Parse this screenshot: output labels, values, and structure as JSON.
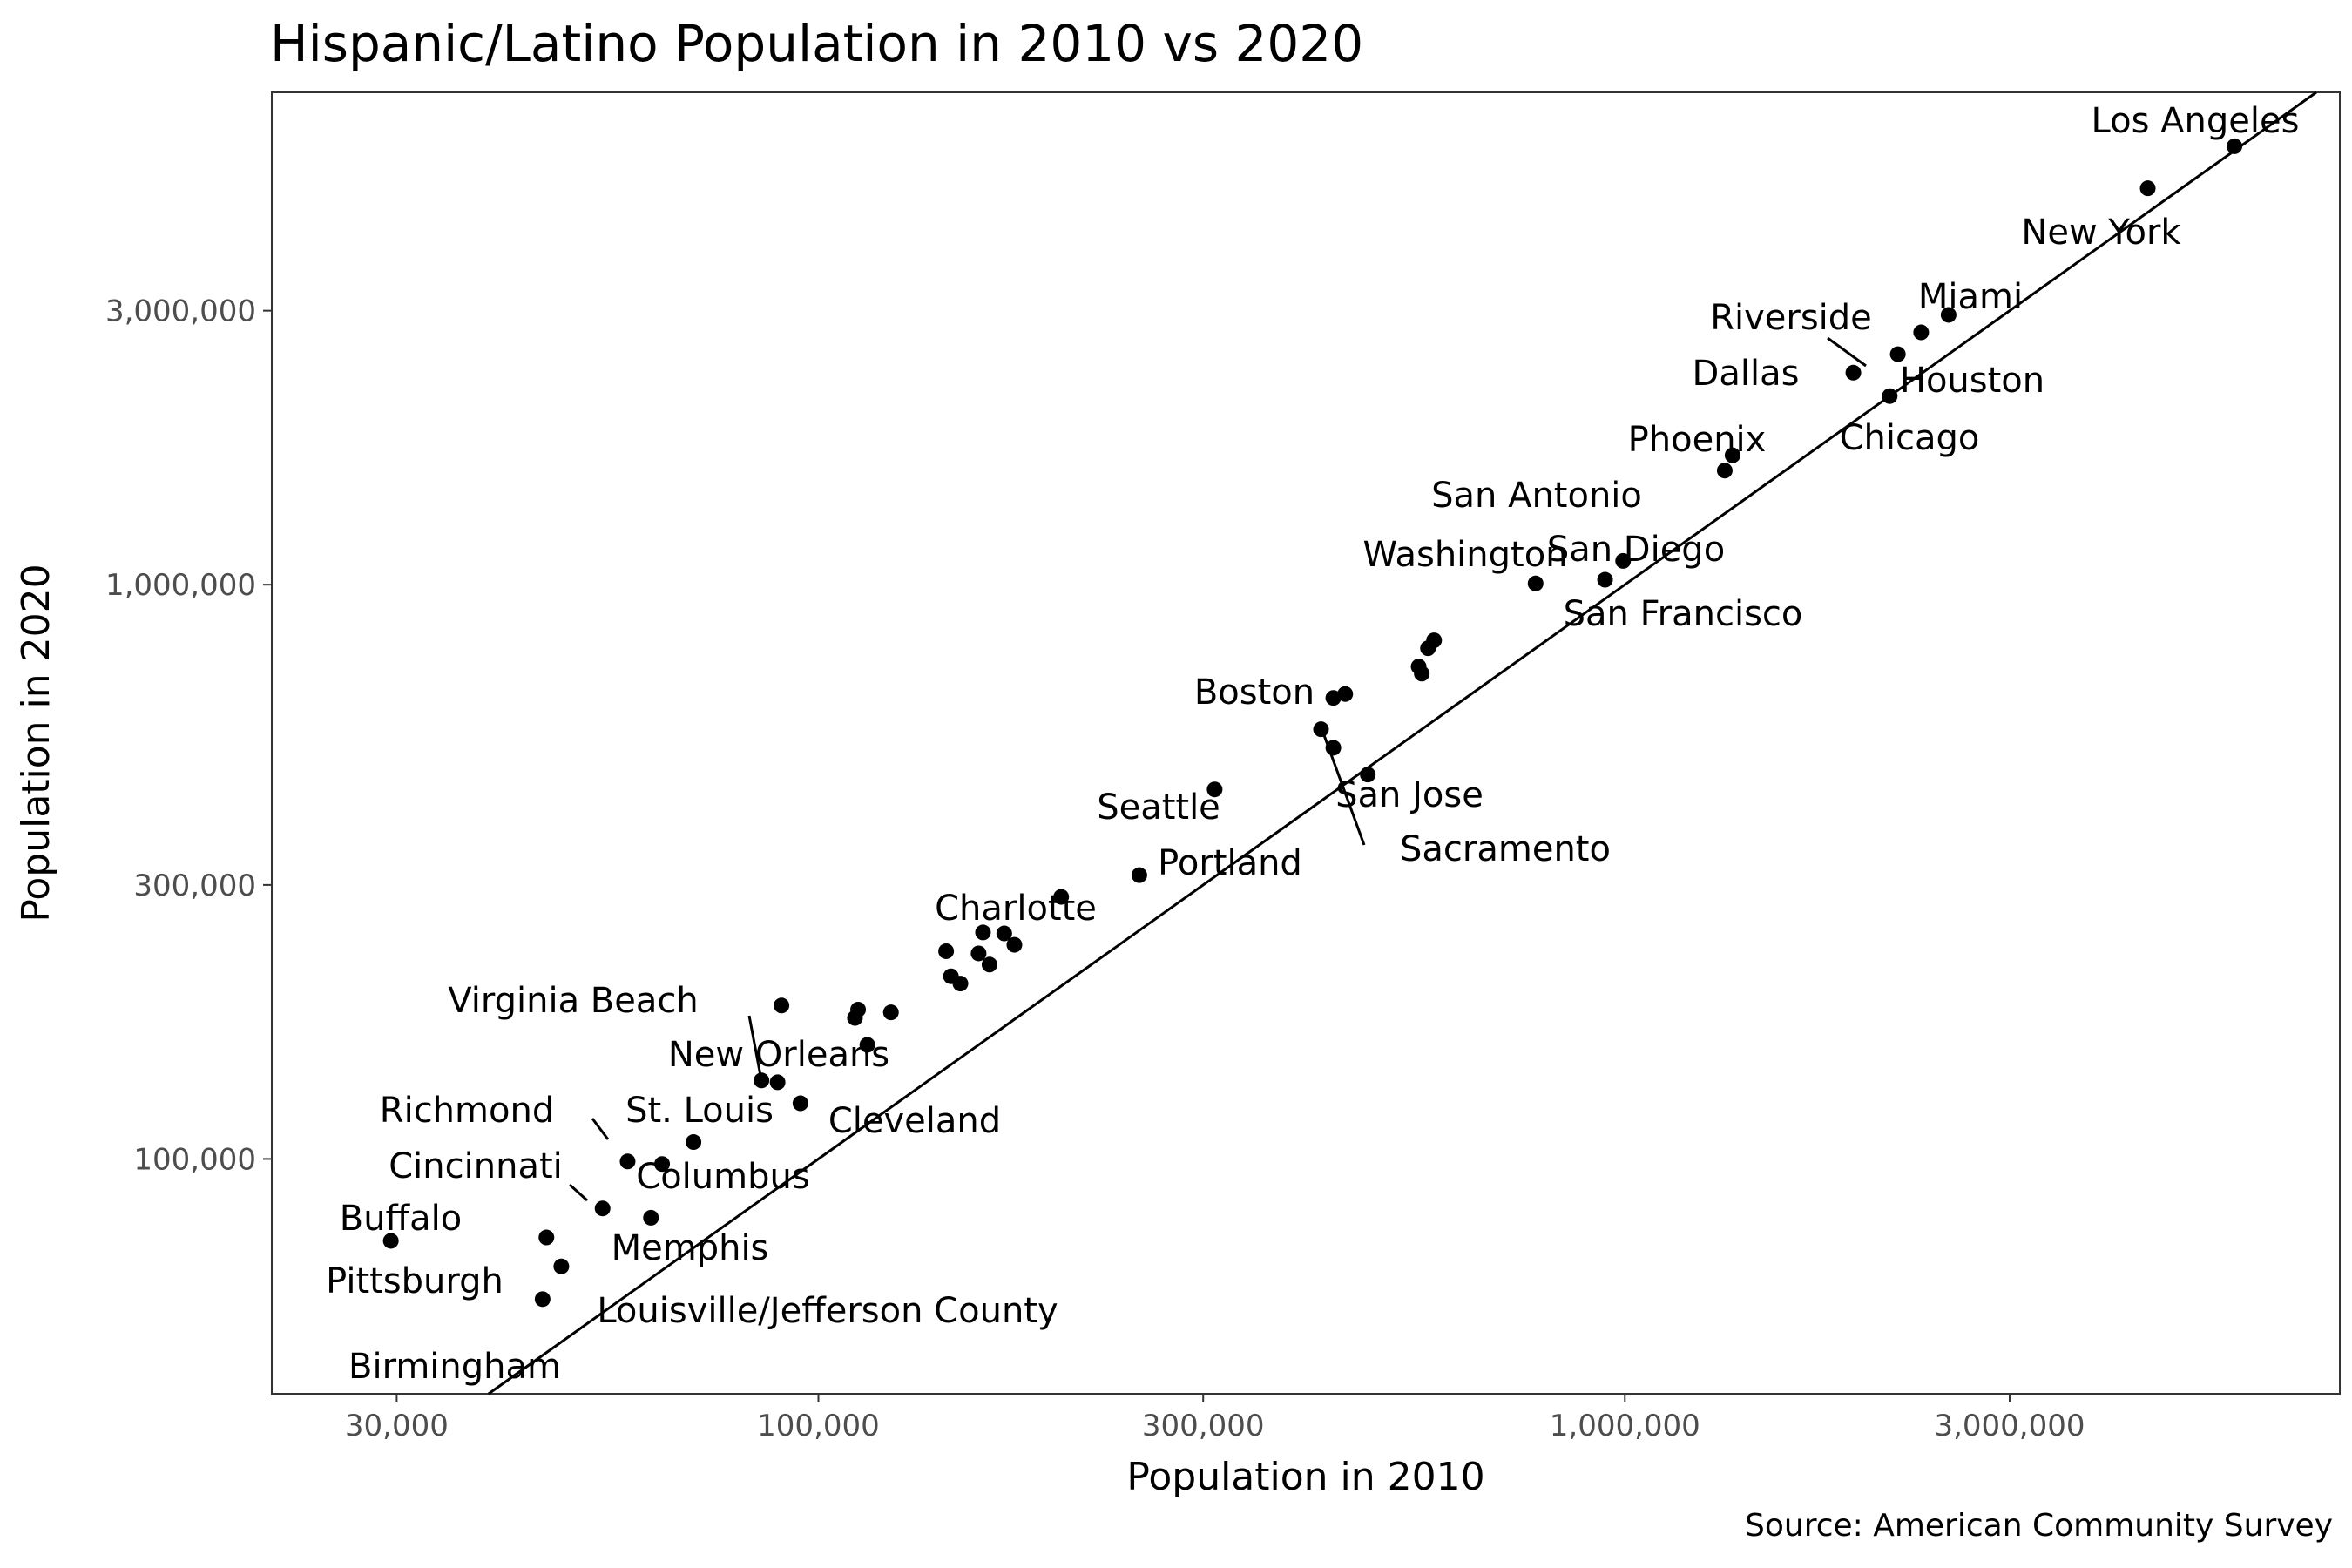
{
  "chart_data": {
    "type": "scatter",
    "title": "Hispanic/Latino Population in 2010 vs 2020",
    "xlabel": "Population in 2010",
    "ylabel": "Population in 2020",
    "caption": "Source: American Community Survey",
    "x_scale": "log10",
    "y_scale": "log10",
    "xlim": [
      21000,
      7700000
    ],
    "ylim": [
      39000,
      7200000
    ],
    "x_ticks": [
      {
        "value": 30000,
        "label": "30,000"
      },
      {
        "value": 100000,
        "label": "100,000"
      },
      {
        "value": 300000,
        "label": "300,000"
      },
      {
        "value": 1000000,
        "label": "1,000,000"
      },
      {
        "value": 3000000,
        "label": "3,000,000"
      }
    ],
    "y_ticks": [
      {
        "value": 100000,
        "label": "100,000"
      },
      {
        "value": 300000,
        "label": "300,000"
      },
      {
        "value": 1000000,
        "label": "1,000,000"
      },
      {
        "value": 3000000,
        "label": "3,000,000"
      }
    ],
    "reference_line": "y = x",
    "grid": false,
    "legend": "none",
    "points": [
      {
        "label": "Los Angeles",
        "x": 5700000,
        "y": 5800000
      },
      {
        "label": "New York",
        "x": 4450000,
        "y": 4900000
      },
      {
        "label": "Miami",
        "x": 2520000,
        "y": 2950000
      },
      {
        "label": "Houston",
        "x": 2330000,
        "y": 2750000
      },
      {
        "label": "Riverside",
        "x": 2180000,
        "y": 2520000
      },
      {
        "label": "Chicago",
        "x": 2130000,
        "y": 2130000
      },
      {
        "label": "Dallas",
        "x": 1920000,
        "y": 2340000
      },
      {
        "label": "Phoenix",
        "x": 1360000,
        "y": 1680000
      },
      {
        "label": "San Antonio",
        "x": 1330000,
        "y": 1580000
      },
      {
        "label": "San Diego",
        "x": 995000,
        "y": 1100000
      },
      {
        "label": "San Francisco",
        "x": 945000,
        "y": 1020000
      },
      {
        "label": "Washington",
        "x": 775000,
        "y": 1005000
      },
      {
        "label": "",
        "x": 580000,
        "y": 800000
      },
      {
        "label": "",
        "x": 570000,
        "y": 775000
      },
      {
        "label": "",
        "x": 555000,
        "y": 720000
      },
      {
        "label": "",
        "x": 560000,
        "y": 700000
      },
      {
        "label": "",
        "x": 435000,
        "y": 635000
      },
      {
        "label": "",
        "x": 450000,
        "y": 645000
      },
      {
        "label": "Boston",
        "x": 420000,
        "y": 560000
      },
      {
        "label": "San Jose",
        "x": 435000,
        "y": 520000
      },
      {
        "label": "Sacramento",
        "x": 480000,
        "y": 467000
      },
      {
        "label": "Seattle",
        "x": 310000,
        "y": 440000
      },
      {
        "label": "Portland",
        "x": 250000,
        "y": 312000
      },
      {
        "label": "",
        "x": 200000,
        "y": 286000
      },
      {
        "label": "Charlotte",
        "x": 170000,
        "y": 247000
      },
      {
        "label": "",
        "x": 175000,
        "y": 236000
      },
      {
        "label": "",
        "x": 160000,
        "y": 248000
      },
      {
        "label": "",
        "x": 158000,
        "y": 228000
      },
      {
        "label": "",
        "x": 163000,
        "y": 218000
      },
      {
        "label": "",
        "x": 144000,
        "y": 230000
      },
      {
        "label": "",
        "x": 146000,
        "y": 208000
      },
      {
        "label": "",
        "x": 150000,
        "y": 202000
      },
      {
        "label": "",
        "x": 123000,
        "y": 180000
      },
      {
        "label": "",
        "x": 112000,
        "y": 182000
      },
      {
        "label": "",
        "x": 111000,
        "y": 176000
      },
      {
        "label": "",
        "x": 115000,
        "y": 158000
      },
      {
        "label": "Virginia Beach",
        "x": 90000,
        "y": 185000
      },
      {
        "label": "New Orleans",
        "x": 89000,
        "y": 136000
      },
      {
        "label": "",
        "x": 85000,
        "y": 137000
      },
      {
        "label": "Cleveland",
        "x": 95000,
        "y": 125000
      },
      {
        "label": "St. Louis",
        "x": 70000,
        "y": 107000
      },
      {
        "label": "Columbus",
        "x": 64000,
        "y": 98000
      },
      {
        "label": "Richmond",
        "x": 58000,
        "y": 99000
      },
      {
        "label": "Cincinnati",
        "x": 54000,
        "y": 82000
      },
      {
        "label": "Memphis",
        "x": 62000,
        "y": 79000
      },
      {
        "label": "Buffalo",
        "x": 46000,
        "y": 73000
      },
      {
        "label": "",
        "x": 29500,
        "y": 72000
      },
      {
        "label": "Pittsburgh",
        "x": 48000,
        "y": 65000
      },
      {
        "label": "Louisville/Jefferson County",
        "x": 45500,
        "y": 57000
      }
    ],
    "annotations": [
      {
        "text": "Los Angeles"
      },
      {
        "text": "New York"
      },
      {
        "text": "Miami"
      },
      {
        "text": "Riverside"
      },
      {
        "text": "Houston"
      },
      {
        "text": "Dallas"
      },
      {
        "text": "Chicago"
      },
      {
        "text": "Phoenix"
      },
      {
        "text": "San Antonio"
      },
      {
        "text": "San Diego"
      },
      {
        "text": "Washington"
      },
      {
        "text": "San Francisco"
      },
      {
        "text": "Boston"
      },
      {
        "text": "San Jose"
      },
      {
        "text": "Sacramento"
      },
      {
        "text": "Seattle"
      },
      {
        "text": "Portland"
      },
      {
        "text": "Charlotte"
      },
      {
        "text": "Virginia Beach"
      },
      {
        "text": "New Orleans"
      },
      {
        "text": "Cleveland"
      },
      {
        "text": "Richmond"
      },
      {
        "text": "St. Louis"
      },
      {
        "text": "Columbus"
      },
      {
        "text": "Cincinnati"
      },
      {
        "text": "Memphis"
      },
      {
        "text": "Buffalo"
      },
      {
        "text": "Pittsburgh"
      },
      {
        "text": "Louisville/Jefferson County"
      },
      {
        "text": "Birmingham"
      }
    ]
  }
}
